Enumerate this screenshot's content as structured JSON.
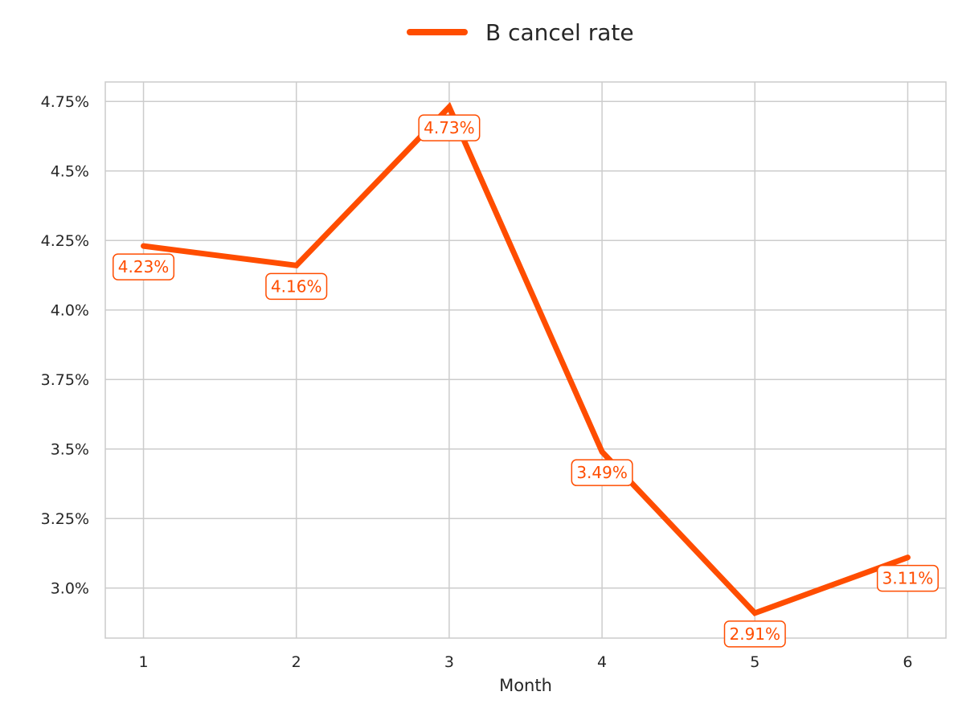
{
  "chart_data": {
    "type": "line",
    "title": "",
    "xlabel": "Month",
    "ylabel": "",
    "x": [
      1,
      2,
      3,
      4,
      5,
      6
    ],
    "series": [
      {
        "name": "B cancel rate",
        "color": "#FF4D00",
        "values": [
          4.23,
          4.16,
          4.73,
          3.49,
          2.91,
          3.11
        ],
        "labels": [
          "4.23%",
          "4.16%",
          "4.73%",
          "3.49%",
          "2.91%",
          "3.11%"
        ]
      }
    ],
    "xticks": [
      1,
      2,
      3,
      4,
      5,
      6
    ],
    "xtick_labels": [
      "1",
      "2",
      "3",
      "4",
      "5",
      "6"
    ],
    "yticks": [
      3.0,
      3.25,
      3.5,
      3.75,
      4.0,
      4.25,
      4.5,
      4.75
    ],
    "ytick_labels": [
      "3.0%",
      "3.25%",
      "3.5%",
      "3.75%",
      "4.0%",
      "4.25%",
      "4.5%",
      "4.75%"
    ],
    "xlim": [
      0.75,
      6.25
    ],
    "ylim": [
      2.82,
      4.82
    ],
    "grid": true,
    "legend_position": "top-center",
    "colors": {
      "grid": "#cccccc",
      "axes_edge": "#cccccc",
      "label_box_face": "#ffffff"
    }
  }
}
